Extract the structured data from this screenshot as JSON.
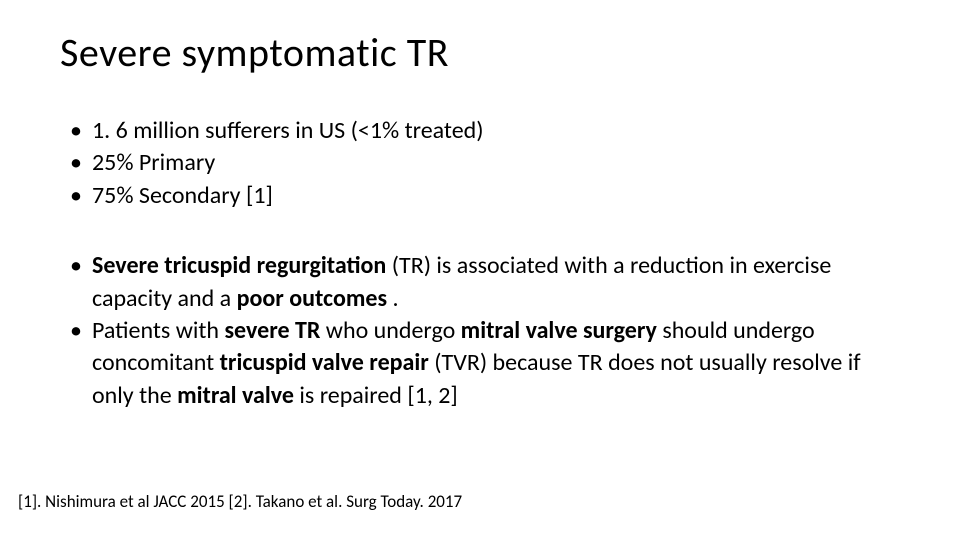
{
  "slide": {
    "title": "Severe symptomatic TR",
    "bullets_group1": [
      {
        "text": "1. 6 million sufferers in US (<1% treated)"
      },
      {
        "text": "25% Primary"
      },
      {
        "text": "75% Secondary [1]"
      }
    ],
    "bullets_group2": [
      {
        "parts": [
          {
            "text": "Severe tricuspid regurgitation ",
            "bold": true
          },
          {
            "text": " (TR) is associated with a reduction in exercise capacity and a ",
            "bold": false
          },
          {
            "text": "poor outcomes",
            "bold": true
          },
          {
            "text": " .",
            "bold": false
          }
        ]
      },
      {
        "parts": [
          {
            "text": "Patients with ",
            "bold": false
          },
          {
            "text": "severe TR ",
            "bold": true
          },
          {
            "text": "who undergo ",
            "bold": false
          },
          {
            "text": "mitral valve surgery ",
            "bold": true
          },
          {
            "text": " should undergo concomitant ",
            "bold": false
          },
          {
            "text": "tricuspid valve repair ",
            "bold": true
          },
          {
            "text": " (TVR) because TR does not usually resolve if only the ",
            "bold": false
          },
          {
            "text": "mitral valve ",
            "bold": true
          },
          {
            "text": "is repaired [1, 2]",
            "bold": false
          }
        ]
      }
    ],
    "references": "[1]. Nishimura et al JACC 2015 [2]. Takano et al. Surg Today. 2017"
  },
  "style": {
    "background_color": "#ffffff",
    "text_color": "#000000",
    "title_fontsize": 40,
    "body_fontsize": 24,
    "ref_fontsize": 17,
    "font_family": "Calibri, 'Segoe UI', Arial, sans-serif"
  }
}
